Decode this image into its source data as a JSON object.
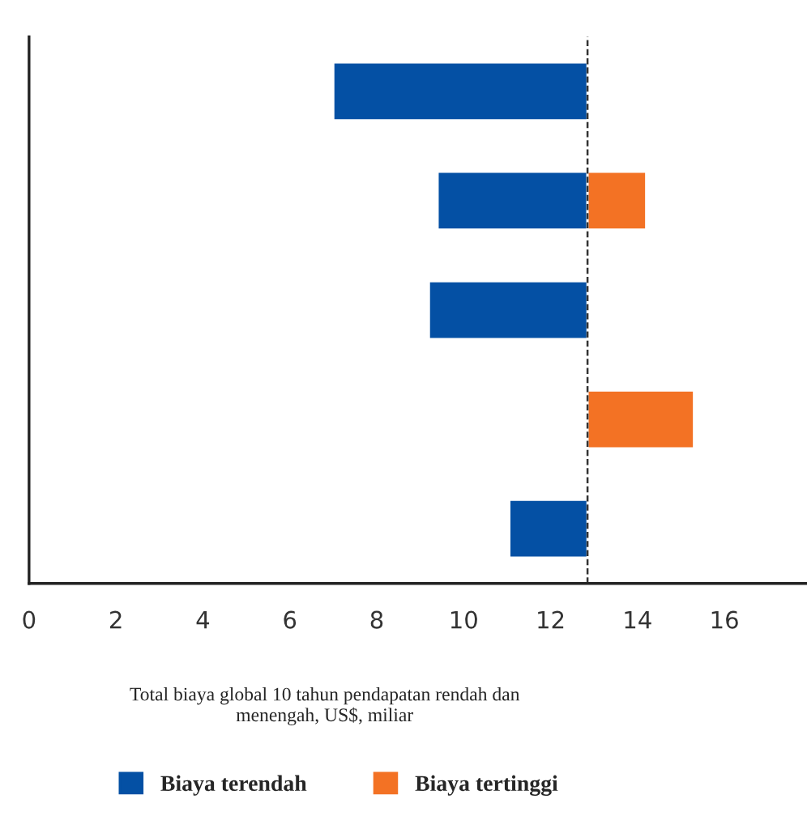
{
  "chart_data": {
    "type": "bar",
    "orientation": "horizontal",
    "xlabel": "Total biaya global 10 tahun pendapatan rendah dan\nmenengah, US$, miliar",
    "categories": [
      null,
      null,
      null,
      null,
      null
    ],
    "series": [
      {
        "name": "Biaya terendah",
        "color": "#0450a4",
        "base": [
          7.0,
          9.4,
          9.2,
          null,
          11.05
        ],
        "values": [
          5.85,
          3.45,
          3.65,
          null,
          1.8
        ]
      },
      {
        "name": "Biaya tertinggi",
        "color": "#f37224",
        "base": [
          null,
          12.85,
          null,
          12.85,
          null
        ],
        "values": [
          null,
          1.35,
          null,
          2.45,
          null
        ]
      }
    ],
    "xlim": [
      0,
      17.9
    ],
    "xticks": [
      0,
      2,
      4,
      6,
      8,
      10,
      12,
      14,
      16
    ],
    "ref_lines": [
      {
        "axis": "x",
        "value": 12.85,
        "color": "#333333",
        "line_style": "dashed"
      }
    ],
    "grid": false,
    "legend": "bottom"
  }
}
